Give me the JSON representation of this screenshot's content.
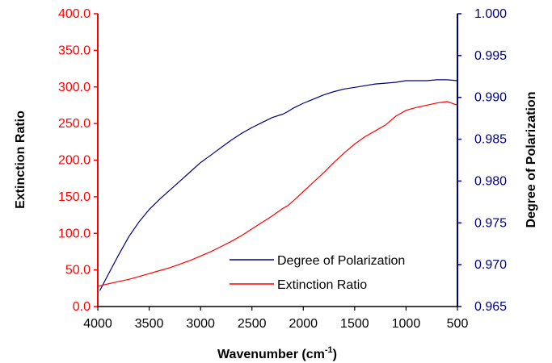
{
  "chart_data": {
    "type": "line",
    "xlabel": "Wavenumber (cm",
    "xlabel_sup": "-1",
    "xlabel_close": ")",
    "ylabel_left": "Extinction Ratio",
    "ylabel_right": "Degree of Polarization",
    "xlim": [
      4000,
      500
    ],
    "x_reversed": true,
    "x_ticks": [
      "4000",
      "3500",
      "3000",
      "2500",
      "2000",
      "1500",
      "1000",
      "500"
    ],
    "x_tick_values": [
      4000,
      3500,
      3000,
      2500,
      2000,
      1500,
      1000,
      500
    ],
    "ylim_left": [
      0,
      400
    ],
    "y_left_ticks": [
      "0.0",
      "50.0",
      "100.0",
      "150.0",
      "200.0",
      "250.0",
      "300.0",
      "350.0",
      "400.0"
    ],
    "y_left_tick_values": [
      0,
      50,
      100,
      150,
      200,
      250,
      300,
      350,
      400
    ],
    "ylim_right": [
      0.965,
      1.0
    ],
    "y_right_ticks": [
      "0.965",
      "0.970",
      "0.975",
      "0.980",
      "0.985",
      "0.990",
      "0.995",
      "1.000"
    ],
    "y_right_tick_values": [
      0.965,
      0.97,
      0.975,
      0.98,
      0.985,
      0.99,
      0.995,
      1.0
    ],
    "grid": false,
    "legend_position": "bottom-right",
    "series": [
      {
        "name": "Degree of Polarization",
        "axis": "right",
        "color": "#000080",
        "x": [
          3980,
          3900,
          3800,
          3700,
          3600,
          3500,
          3400,
          3300,
          3200,
          3100,
          3000,
          2900,
          2800,
          2700,
          2600,
          2500,
          2400,
          2300,
          2200,
          2150,
          2100,
          2000,
          1900,
          1800,
          1700,
          1600,
          1500,
          1400,
          1300,
          1200,
          1100,
          1000,
          900,
          800,
          700,
          600,
          500
        ],
        "y": [
          0.9669,
          0.9688,
          0.9711,
          0.9733,
          0.9751,
          0.9766,
          0.9778,
          0.9789,
          0.98,
          0.9811,
          0.9822,
          0.9831,
          0.984,
          0.9849,
          0.9857,
          0.9864,
          0.987,
          0.9876,
          0.988,
          0.9883,
          0.9887,
          0.9893,
          0.9898,
          0.9903,
          0.9907,
          0.991,
          0.9912,
          0.9914,
          0.9916,
          0.9917,
          0.9918,
          0.992,
          0.992,
          0.992,
          0.9921,
          0.9921,
          0.992
        ]
      },
      {
        "name": "Extinction Ratio",
        "axis": "left",
        "color": "#ff0000",
        "x": [
          3990,
          3900,
          3800,
          3700,
          3600,
          3500,
          3400,
          3300,
          3200,
          3100,
          3000,
          2900,
          2800,
          2700,
          2600,
          2500,
          2400,
          2300,
          2200,
          2150,
          2100,
          2000,
          1900,
          1800,
          1700,
          1600,
          1500,
          1400,
          1300,
          1200,
          1100,
          1000,
          900,
          800,
          700,
          600,
          500
        ],
        "y": [
          28,
          31,
          34,
          37,
          41,
          45,
          49,
          53,
          58,
          63,
          69,
          75,
          82,
          89,
          97,
          106,
          115,
          124,
          134,
          138,
          144,
          157,
          170,
          183,
          197,
          210,
          222,
          232,
          240,
          248,
          260,
          268,
          272,
          275,
          278,
          280,
          275
        ]
      }
    ]
  }
}
